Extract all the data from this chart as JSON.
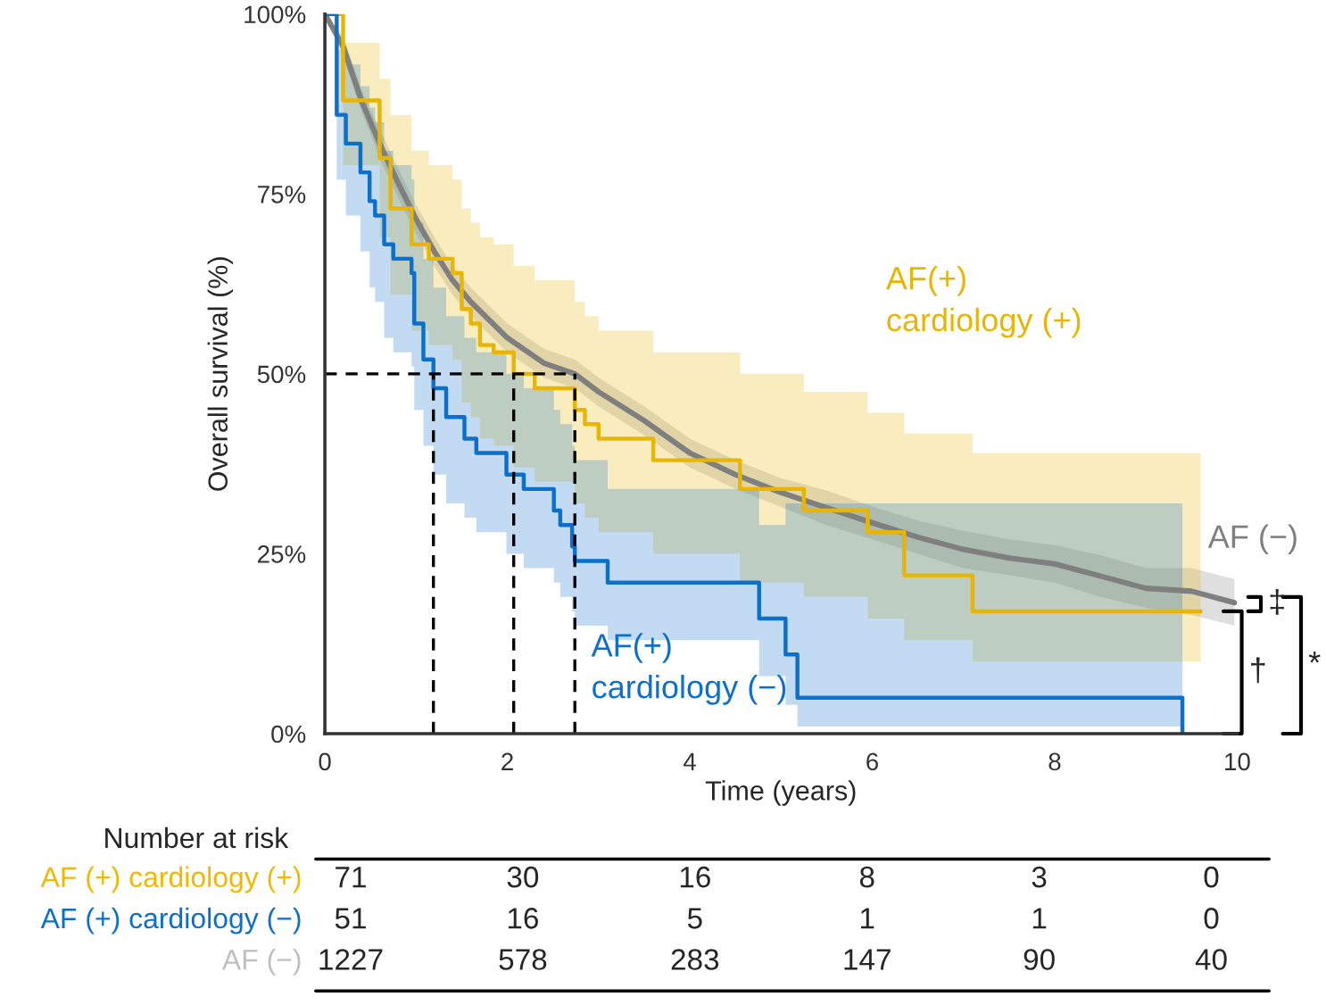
{
  "chart_data": [
    {
      "type": "step",
      "xlabel": "Time (years)",
      "ylabel": "Overall survival (%)",
      "xlim": [
        0,
        10
      ],
      "ylim": [
        0,
        100
      ],
      "xticks": [
        0,
        2,
        4,
        6,
        8,
        10
      ],
      "yticks": [
        {
          "value": 0,
          "label": "0%"
        },
        {
          "value": 25,
          "label": "25%"
        },
        {
          "value": 50,
          "label": "50%"
        },
        {
          "value": 75,
          "label": "75%"
        },
        {
          "value": 100,
          "label": "100%"
        }
      ],
      "grid": false,
      "legend": false,
      "series": [
        {
          "type": "line",
          "color": "#7f7f7f",
          "x": [
            0,
            0.2,
            0.4,
            0.6,
            0.8,
            1.0,
            1.2,
            1.4,
            1.6,
            2.0,
            2.4,
            2.74,
            3.0,
            3.5,
            4.0,
            4.5,
            5.0,
            5.5,
            6.0,
            6.5,
            7.0,
            7.5,
            8.0,
            8.5,
            9.0,
            9.5,
            9.97
          ],
          "values": [
            100,
            95.5,
            88,
            82,
            76.6,
            71.5,
            67,
            63,
            60,
            55,
            51.5,
            50,
            47.5,
            43.5,
            39,
            36,
            33.5,
            31.4,
            29.3,
            27.3,
            25.6,
            24.4,
            23.6,
            21.9,
            20.2,
            19.8,
            18.2
          ],
          "lower": [
            100,
            94,
            86.5,
            80,
            74.5,
            69.5,
            65,
            61,
            58,
            53,
            49.5,
            48,
            45.5,
            41.5,
            37,
            34,
            31.5,
            29,
            27,
            25,
            23,
            22,
            21,
            19,
            17.5,
            16.5,
            15
          ],
          "upper": [
            100,
            97,
            89.5,
            84,
            78.7,
            73.5,
            69,
            65,
            62,
            57,
            53.5,
            52,
            49.5,
            45.5,
            41,
            38,
            35.5,
            33.8,
            31.6,
            29.6,
            28.2,
            27,
            26.2,
            24.8,
            23,
            23,
            21.5
          ]
        },
        {
          "color": "#e8b600",
          "x": [
            0,
            0.2,
            0.6,
            0.72,
            0.95,
            1.14,
            1.4,
            1.5,
            1.6,
            1.7,
            1.85,
            2.07,
            2.3,
            2.74,
            2.85,
            3.0,
            3.6,
            4.55,
            5.25,
            5.95,
            6.35,
            7.1,
            9.6
          ],
          "values": [
            100,
            88,
            80,
            73,
            68,
            66,
            64,
            59,
            57,
            54,
            53,
            50,
            48,
            45,
            43,
            41,
            38,
            34,
            31,
            28,
            22,
            17,
            17
          ],
          "lower": [
            100,
            79,
            69,
            61,
            56,
            54,
            52,
            46,
            44,
            41,
            40,
            37,
            35,
            32,
            30,
            28,
            25,
            21,
            19,
            16,
            13,
            10,
            10
          ],
          "upper": [
            100,
            96,
            91,
            86,
            81,
            79,
            77,
            73,
            71,
            69,
            68,
            65,
            63,
            60,
            58,
            56,
            53,
            50,
            47.5,
            44.6,
            41.7,
            39,
            39
          ]
        },
        {
          "color": "#0b6fcc",
          "x": [
            0,
            0.13,
            0.23,
            0.39,
            0.49,
            0.55,
            0.65,
            0.75,
            0.95,
            0.98,
            1.08,
            1.19,
            1.33,
            1.53,
            1.66,
            1.99,
            2.18,
            2.51,
            2.58,
            2.71,
            2.74,
            3.1,
            4.76,
            5.05,
            5.18,
            9.4
          ],
          "values": [
            100,
            86,
            82,
            78,
            74,
            72,
            68,
            66,
            64,
            57,
            52,
            48,
            44,
            41,
            39,
            36,
            34,
            31,
            29,
            26,
            24,
            21,
            16,
            11,
            5,
            0
          ],
          "lower": [
            100,
            77,
            72,
            67,
            62,
            60,
            55,
            53,
            51,
            45,
            40,
            36,
            32,
            30,
            28,
            25,
            23,
            21,
            19,
            17,
            15,
            13,
            8,
            4,
            1,
            0
          ],
          "upper": [
            100,
            95,
            93,
            90,
            87,
            85,
            81,
            79,
            77,
            71,
            66,
            62,
            58,
            55,
            53,
            50,
            48,
            45,
            43,
            40,
            38,
            34,
            29,
            32,
            32,
            32
          ]
        },
        {
          "type": "line",
          "color": "#000000",
          "line_style": "dashed",
          "x": [
            0,
            2.74
          ],
          "values": [
            50,
            50
          ]
        },
        {
          "type": "line",
          "color": "#000000",
          "line_style": "dashed",
          "x": [
            1.19,
            1.19
          ],
          "values": [
            0,
            50
          ]
        },
        {
          "type": "line",
          "color": "#000000",
          "line_style": "dashed",
          "x": [
            2.07,
            2.07
          ],
          "values": [
            0,
            50
          ]
        },
        {
          "type": "line",
          "color": "#000000",
          "line_style": "dashed",
          "x": [
            2.74,
            2.74
          ],
          "values": [
            0,
            50
          ]
        }
      ],
      "annotations": [
        "AF (−)",
        "AF(+)\ncardiology (+)",
        "AF(+)\ncardiology (−)",
        "‡",
        "†",
        "*"
      ]
    },
    {
      "type": "heatmap",
      "title": "Number at risk",
      "data_labels": true,
      "categories": [
        null,
        null,
        null,
        null,
        null,
        null
      ],
      "y_categories": [
        "AF (+) cardiology (+)",
        "AF (+) cardiology (−)",
        "AF (−)"
      ],
      "colors": [
        "#f2b800",
        "#0b6fcc",
        "#bfbfbf"
      ],
      "cells": [
        [
          71,
          30,
          16,
          8,
          3,
          0
        ],
        [
          51,
          16,
          5,
          1,
          1,
          0
        ],
        [
          1227,
          578,
          283,
          147,
          90,
          40
        ]
      ]
    }
  ]
}
